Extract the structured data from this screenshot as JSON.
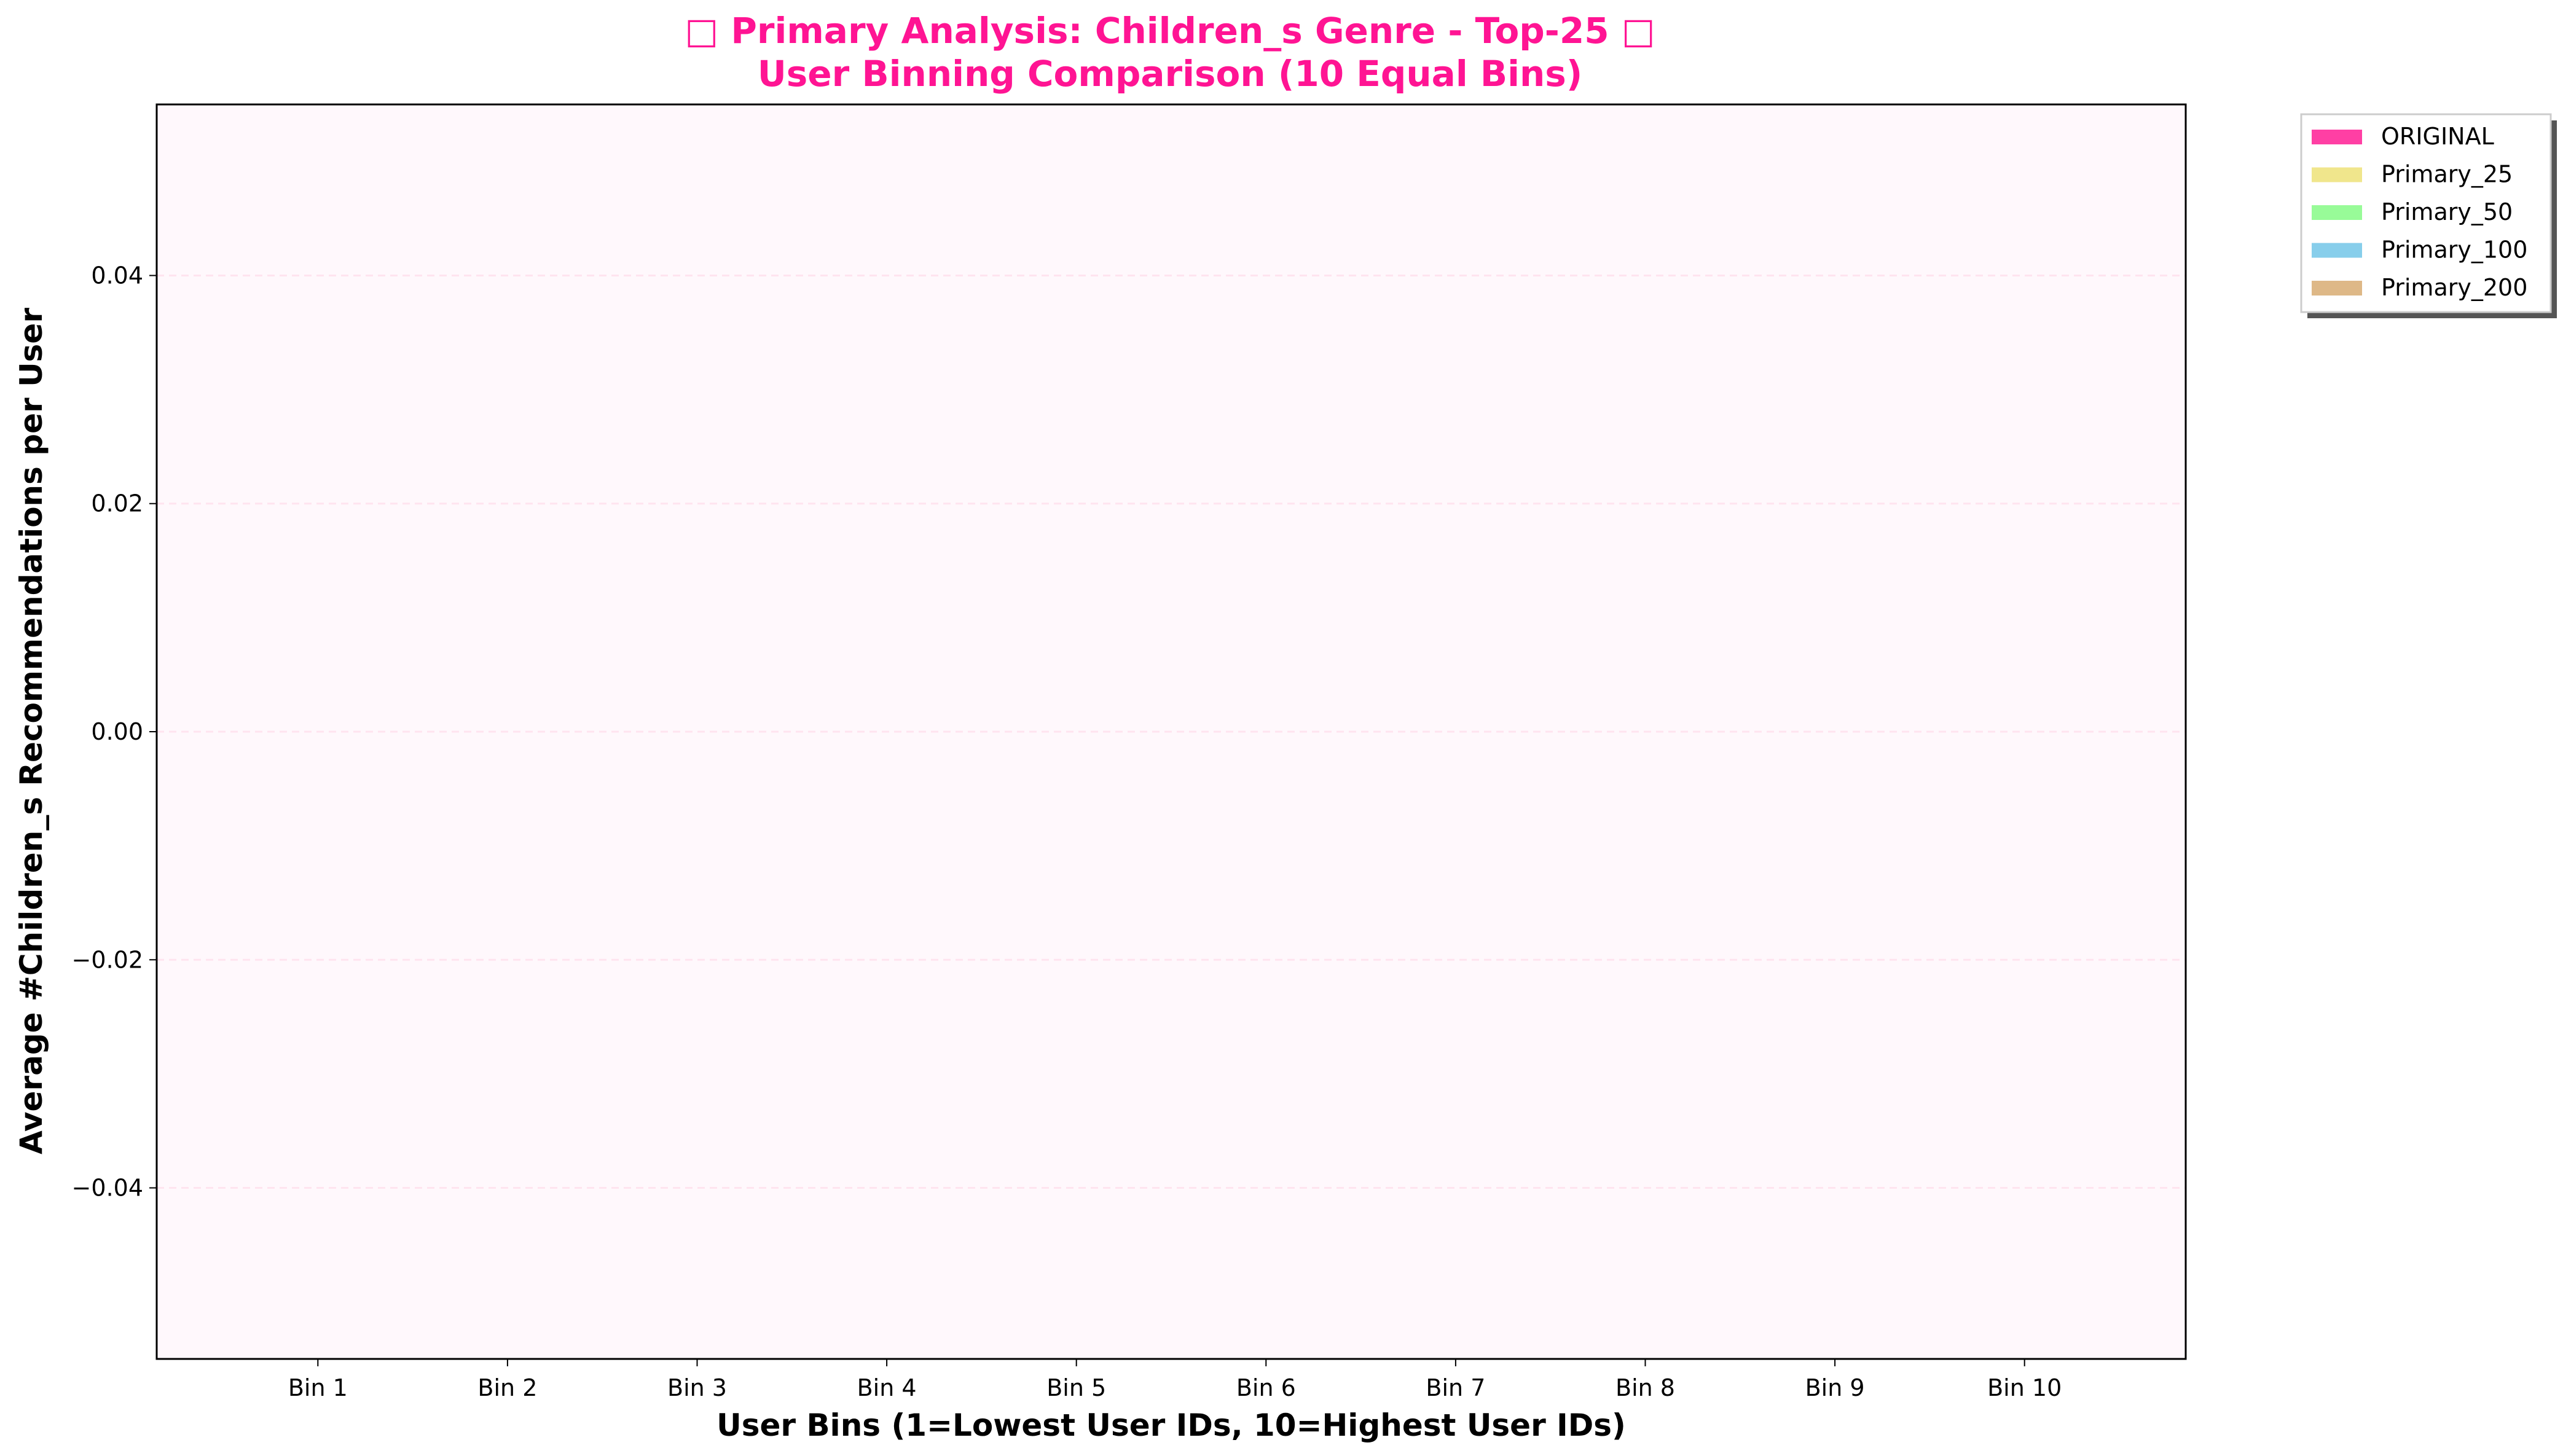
{
  "chart_data": {
    "type": "bar",
    "title": "□ Primary Analysis: Children_s Genre - Top-25 □",
    "subtitle": "User Binning Comparison (10 Equal Bins)",
    "xlabel": "User Bins (1=Lowest User IDs, 10=Highest User IDs)",
    "ylabel": "Average #Children_s Recommendations per User",
    "categories": [
      "Bin 1",
      "Bin 2",
      "Bin 3",
      "Bin 4",
      "Bin 5",
      "Bin 6",
      "Bin 7",
      "Bin 8",
      "Bin 9",
      "Bin 10"
    ],
    "series": [
      {
        "name": "ORIGINAL",
        "color": "#ff3fa4",
        "values": [
          0,
          0,
          0,
          0,
          0,
          0,
          0,
          0,
          0,
          0
        ]
      },
      {
        "name": "Primary_25",
        "color": "#f0e68c",
        "values": [
          0,
          0,
          0,
          0,
          0,
          0,
          0,
          0,
          0,
          0
        ]
      },
      {
        "name": "Primary_50",
        "color": "#98fb98",
        "values": [
          0,
          0,
          0,
          0,
          0,
          0,
          0,
          0,
          0,
          0
        ]
      },
      {
        "name": "Primary_100",
        "color": "#87ceeb",
        "values": [
          0,
          0,
          0,
          0,
          0,
          0,
          0,
          0,
          0,
          0
        ]
      },
      {
        "name": "Primary_200",
        "color": "#deb887",
        "values": [
          0,
          0,
          0,
          0,
          0,
          0,
          0,
          0,
          0,
          0
        ]
      }
    ],
    "yticks": [
      {
        "value": 0.04,
        "label": "0.04"
      },
      {
        "value": 0.02,
        "label": "0.02"
      },
      {
        "value": 0.0,
        "label": "0.00"
      },
      {
        "value": -0.02,
        "label": "−0.02"
      },
      {
        "value": -0.04,
        "label": "−0.04"
      }
    ],
    "ylim": [
      -0.055,
      0.055
    ],
    "grid": true,
    "legend_position": "outside-top-right",
    "plot_background": "#fff8fc",
    "grid_color": "#ffe4ef"
  }
}
